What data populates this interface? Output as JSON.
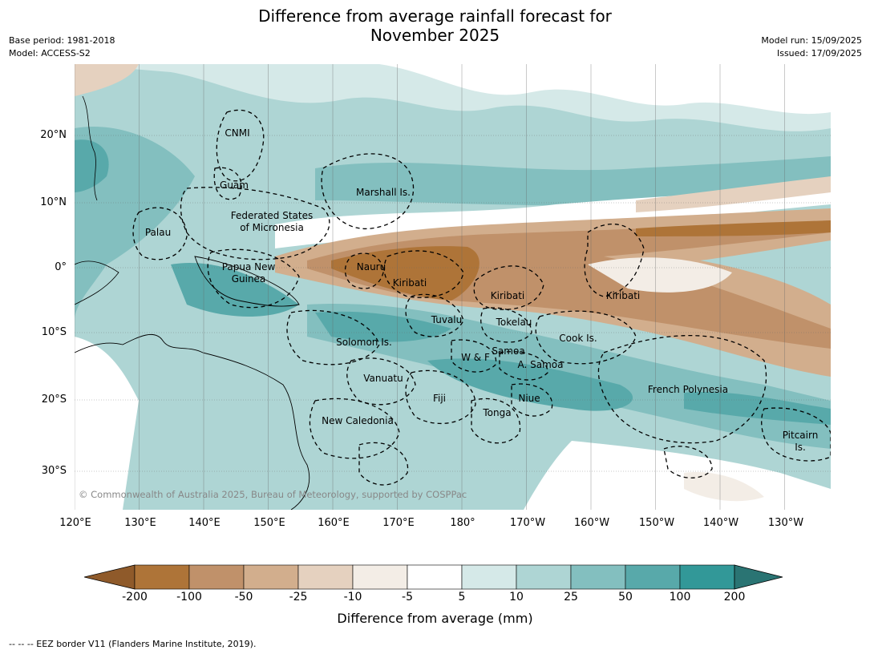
{
  "title": {
    "line1": "Difference from average rainfall forecast for",
    "line2": "November 2025"
  },
  "meta_left": {
    "base_period": "Base period: 1981-2018",
    "model": "Model: ACCESS-S2"
  },
  "meta_right": {
    "model_run": "Model run: 15/09/2025",
    "issued": "Issued: 17/09/2025"
  },
  "lat_labels": [
    "20°N",
    "10°N",
    "0°",
    "10°S",
    "20°S",
    "30°S"
  ],
  "lon_labels": [
    "120°E",
    "130°E",
    "140°E",
    "150°E",
    "160°E",
    "170°E",
    "180°",
    "170°W",
    "160°W",
    "150°W",
    "140°W",
    "130°W"
  ],
  "regions": [
    {
      "name": "CNMI"
    },
    {
      "name": "Guam"
    },
    {
      "name": "Marshall Is."
    },
    {
      "name": "Federated States"
    },
    {
      "name": "of Micronesia"
    },
    {
      "name": "Palau"
    },
    {
      "name": "Papua New"
    },
    {
      "name": "Guinea"
    },
    {
      "name": "Nauru"
    },
    {
      "name": "Kiribati"
    },
    {
      "name": "Kiribati"
    },
    {
      "name": "Kiribati"
    },
    {
      "name": "Tuvalu"
    },
    {
      "name": "Tokelau"
    },
    {
      "name": "Cook Is."
    },
    {
      "name": "Solomon Is."
    },
    {
      "name": "Samoa"
    },
    {
      "name": "W & F"
    },
    {
      "name": "A. Samoa"
    },
    {
      "name": "Vanuatu"
    },
    {
      "name": "Fiji"
    },
    {
      "name": "Niue"
    },
    {
      "name": "Tonga"
    },
    {
      "name": "French Polynesia"
    },
    {
      "name": "New Caledonia"
    },
    {
      "name": "Pitcairn"
    },
    {
      "name": "Is."
    }
  ],
  "copyright": "© Commonwealth of Australia 2025, Bureau of Meteorology, supported by COSPPac",
  "legend": {
    "ticks": [
      "-200",
      "-100",
      "-50",
      "-25",
      "-10",
      "-5",
      "5",
      "10",
      "25",
      "50",
      "100",
      "200"
    ],
    "colors": [
      "#8f5a2a",
      "#ae7438",
      "#c0916a",
      "#d2ae8d",
      "#e5d1bf",
      "#f3ede6",
      "#ffffff",
      "#d5e9e8",
      "#aed5d4",
      "#83bfbf",
      "#58a9aa",
      "#329898",
      "#2a7473"
    ],
    "label": "Difference from average (mm)"
  },
  "eez_note": "--  --  -- EEZ border V11 (Flanders Marine Institute, 2019)."
}
